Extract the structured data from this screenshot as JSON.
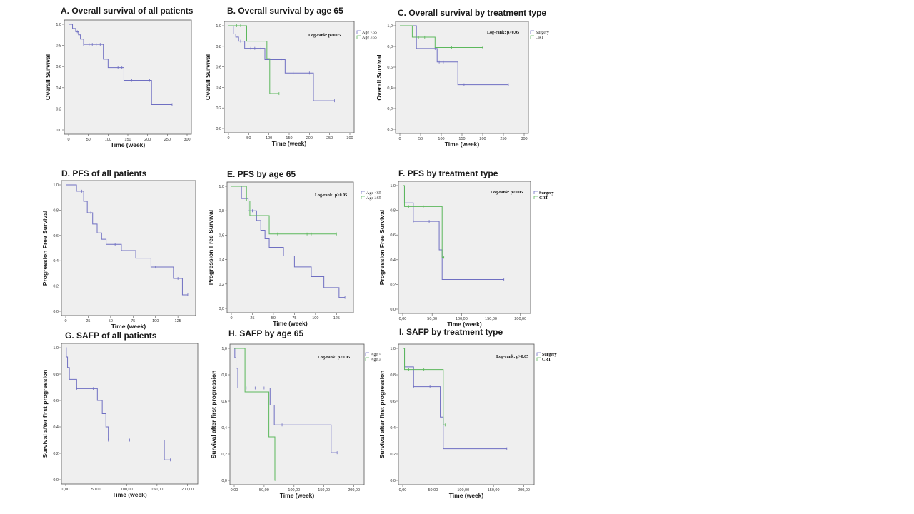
{
  "colors": {
    "blue": "#6f6fc2",
    "green": "#5cb85c",
    "plot_bg": "#efefef"
  },
  "chart_data": [
    {
      "type": "line",
      "id": "A",
      "title": "A. Overall survival of all patients",
      "xlabel": "Time (week)",
      "ylabel": "Overall Survival",
      "xlim": [
        0,
        300
      ],
      "ylim": [
        0,
        1
      ],
      "x_ticks": [
        0,
        50,
        100,
        150,
        200,
        250,
        300
      ],
      "x_tick_labels": [
        "0",
        "50",
        "100",
        "150",
        "200",
        "250",
        "300"
      ],
      "y_ticks": [
        0,
        0.2,
        0.4,
        0.6,
        0.8,
        1.0
      ],
      "y_tick_labels": [
        "0,0",
        "0,2",
        "0,4",
        "0,6",
        "0,8",
        "1,0"
      ],
      "series": [
        {
          "color": "blue",
          "x": [
            0,
            10,
            18,
            25,
            30,
            38,
            45,
            88,
            100,
            140,
            210,
            262
          ],
          "y": [
            1.0,
            0.96,
            0.93,
            0.9,
            0.86,
            0.81,
            0.81,
            0.67,
            0.59,
            0.47,
            0.24,
            0.24
          ],
          "censor_x": [
            22,
            38,
            52,
            60,
            70,
            80,
            125,
            135,
            160,
            205,
            262
          ]
        }
      ]
    },
    {
      "type": "line",
      "id": "B",
      "title": "B. Overall survival by age 65",
      "xlabel": "Time (week)",
      "ylabel": "Overall Survival",
      "annotation": "Log-rank: p>0.05",
      "legend": [
        "Age <65",
        "Age ≥65"
      ],
      "xlim": [
        0,
        300
      ],
      "ylim": [
        0,
        1
      ],
      "x_ticks": [
        0,
        50,
        100,
        150,
        200,
        250,
        300
      ],
      "x_tick_labels": [
        "0",
        "50",
        "100",
        "150",
        "200",
        "250",
        "300"
      ],
      "y_ticks": [
        0,
        0.2,
        0.4,
        0.6,
        0.8,
        1.0
      ],
      "y_tick_labels": [
        "0,0",
        "0,2",
        "0,4",
        "0,6",
        "0,8",
        "1,0"
      ],
      "series": [
        {
          "color": "blue",
          "x": [
            0,
            12,
            18,
            25,
            40,
            90,
            140,
            210,
            262
          ],
          "y": [
            1.0,
            0.92,
            0.89,
            0.85,
            0.78,
            0.67,
            0.54,
            0.27,
            0.27
          ],
          "censor_x": [
            30,
            55,
            65,
            80,
            130,
            160,
            200,
            262
          ]
        },
        {
          "color": "green",
          "x": [
            0,
            45,
            95,
            102,
            125
          ],
          "y": [
            1.0,
            0.85,
            0.68,
            0.34,
            0.34
          ],
          "censor_x": [
            20,
            30,
            125
          ]
        }
      ]
    },
    {
      "type": "line",
      "id": "C",
      "title": "C. Overall survival by treatment type",
      "xlabel": "Time (week)",
      "ylabel": "Overall Survival",
      "annotation": "Log-rank: p>0.05",
      "legend": [
        "Surgery",
        "CRT"
      ],
      "xlim": [
        0,
        300
      ],
      "ylim": [
        0,
        1
      ],
      "x_ticks": [
        0,
        50,
        100,
        150,
        200,
        250,
        300
      ],
      "x_tick_labels": [
        "0",
        "50",
        "100",
        "150",
        "200",
        "250",
        "300"
      ],
      "y_ticks": [
        0,
        0.2,
        0.4,
        0.6,
        0.8,
        1.0
      ],
      "y_tick_labels": [
        "0,0",
        "0,2",
        "0,4",
        "0,6",
        "0,8",
        "1,0"
      ],
      "series": [
        {
          "color": "blue",
          "x": [
            0,
            40,
            90,
            140,
            262
          ],
          "y": [
            1.0,
            0.78,
            0.65,
            0.43,
            0.43
          ],
          "censor_x": [
            85,
            95,
            105,
            155,
            262
          ]
        },
        {
          "color": "green",
          "x": [
            0,
            30,
            85,
            200
          ],
          "y": [
            1.0,
            0.89,
            0.79,
            0.79
          ],
          "censor_x": [
            45,
            60,
            75,
            125,
            200
          ]
        }
      ]
    },
    {
      "type": "line",
      "id": "D",
      "title": "D. PFS of all patients",
      "xlabel": "Time (week)",
      "ylabel": "Progression Free Survival",
      "xlim": [
        0,
        140
      ],
      "ylim": [
        0,
        1
      ],
      "x_ticks": [
        0,
        25,
        50,
        75,
        100,
        125
      ],
      "x_tick_labels": [
        "0",
        "25",
        "50",
        "75",
        "100",
        "125"
      ],
      "y_ticks": [
        0,
        0.2,
        0.4,
        0.6,
        0.8,
        1.0
      ],
      "y_tick_labels": [
        "0,0",
        "0,2",
        "0,4",
        "0,6",
        "0,8",
        "1,0"
      ],
      "series": [
        {
          "color": "blue",
          "x": [
            0,
            12,
            20,
            24,
            30,
            35,
            40,
            45,
            50,
            62,
            78,
            95,
            120,
            130,
            136
          ],
          "y": [
            1.0,
            0.95,
            0.87,
            0.78,
            0.69,
            0.62,
            0.57,
            0.53,
            0.53,
            0.48,
            0.42,
            0.35,
            0.26,
            0.13,
            0.13
          ],
          "censor_x": [
            18,
            28,
            45,
            55,
            95,
            100,
            125,
            136
          ]
        }
      ]
    },
    {
      "type": "line",
      "id": "E",
      "title": "E. PFS by age 65",
      "xlabel": "Time (week)",
      "ylabel": "Progression Free Survival",
      "annotation": "Log-rank: p>0.05",
      "legend": [
        "Age <65",
        "Age ≥65"
      ],
      "xlim": [
        0,
        140
      ],
      "ylim": [
        0,
        1
      ],
      "x_ticks": [
        0,
        25,
        50,
        75,
        100,
        125
      ],
      "x_tick_labels": [
        "0",
        "25",
        "50",
        "75",
        "100",
        "125"
      ],
      "y_ticks": [
        0,
        0.2,
        0.4,
        0.6,
        0.8,
        1.0
      ],
      "y_tick_labels": [
        "0,0",
        "0,2",
        "0,4",
        "0,6",
        "0,8",
        "1,0"
      ],
      "series": [
        {
          "color": "blue",
          "x": [
            0,
            12,
            20,
            30,
            35,
            40,
            45,
            62,
            75,
            95,
            110,
            128,
            135
          ],
          "y": [
            1.0,
            0.9,
            0.8,
            0.72,
            0.64,
            0.57,
            0.5,
            0.43,
            0.34,
            0.26,
            0.17,
            0.09,
            0.09
          ],
          "censor_x": [
            25,
            135
          ]
        },
        {
          "color": "green",
          "x": [
            0,
            18,
            22,
            40,
            45,
            125
          ],
          "y": [
            1.0,
            0.88,
            0.76,
            0.76,
            0.61,
            0.61
          ],
          "censor_x": [
            20,
            55,
            90,
            95,
            125
          ]
        }
      ]
    },
    {
      "type": "line",
      "id": "F",
      "title": "F. PFS by treatment type",
      "xlabel": "Time (week)",
      "ylabel": "Progression Free Survival",
      "annotation": "Log-rank: p>0.05",
      "legend": [
        "Surgery",
        "CRT"
      ],
      "xlim": [
        0,
        210
      ],
      "ylim": [
        0,
        1
      ],
      "x_ticks": [
        0,
        50,
        100,
        150,
        200
      ],
      "x_tick_labels": [
        "0,00",
        "50,00",
        "100,00",
        "150,00",
        "200,00"
      ],
      "y_ticks": [
        0,
        0.2,
        0.4,
        0.6,
        0.8,
        1.0
      ],
      "y_tick_labels": [
        "0,0",
        "0,2",
        "0,4",
        "0,6",
        "0,8",
        "1,0"
      ],
      "series": [
        {
          "color": "blue",
          "x": [
            0,
            3,
            18,
            62,
            67,
            172
          ],
          "y": [
            1.0,
            0.86,
            0.71,
            0.48,
            0.24,
            0.24
          ],
          "censor_x": [
            18,
            45,
            172
          ]
        },
        {
          "color": "green",
          "x": [
            0,
            3,
            62,
            67,
            70
          ],
          "y": [
            1.0,
            0.83,
            0.83,
            0.42,
            0.42
          ],
          "censor_x": [
            10,
            35,
            70
          ]
        }
      ]
    },
    {
      "type": "line",
      "id": "G",
      "title": "G. SAFP of all patients",
      "xlabel": "Time (week)",
      "ylabel": "Survival after first progression",
      "xlim": [
        0,
        210
      ],
      "ylim": [
        0,
        1
      ],
      "x_ticks": [
        0,
        50,
        100,
        150,
        200
      ],
      "x_tick_labels": [
        "0,00",
        "50,00",
        "100,00",
        "150,00",
        "200,00"
      ],
      "y_ticks": [
        0,
        0.2,
        0.4,
        0.6,
        0.8,
        1.0
      ],
      "y_tick_labels": [
        "0,0",
        "0,2",
        "0,4",
        "0,6",
        "0,8",
        "1,0"
      ],
      "series": [
        {
          "color": "blue",
          "x": [
            0,
            1,
            3,
            6,
            18,
            52,
            60,
            66,
            70,
            162,
            172
          ],
          "y": [
            1.0,
            0.93,
            0.85,
            0.76,
            0.69,
            0.6,
            0.5,
            0.4,
            0.3,
            0.15,
            0.15
          ],
          "censor_x": [
            18,
            30,
            45,
            70,
            105,
            172
          ]
        }
      ]
    },
    {
      "type": "line",
      "id": "H",
      "title": "H. SAFP by age 65",
      "xlabel": "Time (week)",
      "ylabel": "Survival after first progression",
      "annotation": "Log-rank: p>0.05",
      "legend": [
        "Age <",
        "Age ≥"
      ],
      "xlim": [
        0,
        210
      ],
      "ylim": [
        0,
        1
      ],
      "x_ticks": [
        0,
        50,
        100,
        150,
        200
      ],
      "x_tick_labels": [
        "0,00",
        "50,00",
        "100,00",
        "150,00",
        "200,00"
      ],
      "y_ticks": [
        0,
        0.2,
        0.4,
        0.6,
        0.8,
        1.0
      ],
      "y_tick_labels": [
        "0,0",
        "0,2",
        "0,4",
        "0,6",
        "0,8",
        "1,0"
      ],
      "series": [
        {
          "color": "blue",
          "x": [
            0,
            1,
            3,
            6,
            60,
            67,
            162,
            172
          ],
          "y": [
            1.0,
            0.93,
            0.85,
            0.7,
            0.57,
            0.42,
            0.21,
            0.21
          ],
          "censor_x": [
            20,
            35,
            50,
            80,
            172
          ]
        },
        {
          "color": "green",
          "x": [
            0,
            18,
            58,
            68,
            69
          ],
          "y": [
            1.0,
            0.67,
            0.33,
            0.0,
            0.0
          ],
          "censor_x": []
        }
      ]
    },
    {
      "type": "line",
      "id": "I",
      "title": "I. SAFP by treatment type",
      "xlabel": "Time (week)",
      "ylabel": "Survival after first progression",
      "annotation": "Log-rank: p>0.05",
      "legend": [
        "Surgery",
        "CRT"
      ],
      "xlim": [
        0,
        210
      ],
      "ylim": [
        0,
        1
      ],
      "x_ticks": [
        0,
        50,
        100,
        150,
        200
      ],
      "x_tick_labels": [
        "0,00",
        "50,00",
        "100,00",
        "150,00",
        "200,00"
      ],
      "y_ticks": [
        0,
        0.2,
        0.4,
        0.6,
        0.8,
        1.0
      ],
      "y_tick_labels": [
        "0,0",
        "0,2",
        "0,4",
        "0,6",
        "0,8",
        "1,0"
      ],
      "series": [
        {
          "color": "blue",
          "x": [
            0,
            3,
            18,
            62,
            67,
            172
          ],
          "y": [
            1.0,
            0.86,
            0.71,
            0.48,
            0.24,
            0.24
          ],
          "censor_x": [
            18,
            45,
            172
          ]
        },
        {
          "color": "green",
          "x": [
            0,
            3,
            62,
            67,
            70
          ],
          "y": [
            1.0,
            0.84,
            0.84,
            0.42,
            0.42
          ],
          "censor_x": [
            10,
            35,
            70
          ]
        }
      ]
    }
  ]
}
